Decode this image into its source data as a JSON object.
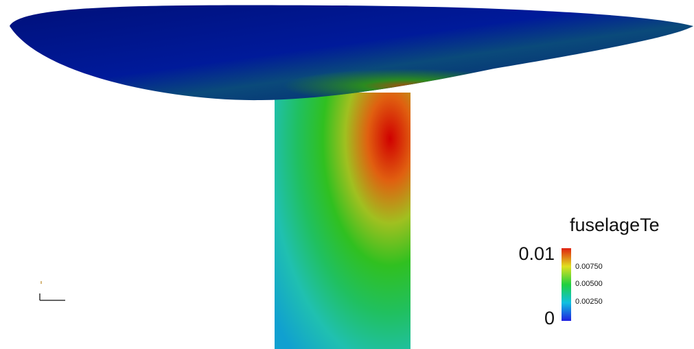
{
  "colorbar": {
    "title": "fuselageTe",
    "max_label": "0.01",
    "min_label": "0",
    "tick_labels": [
      "0.00750",
      "0.00500",
      "0.00250"
    ]
  }
}
